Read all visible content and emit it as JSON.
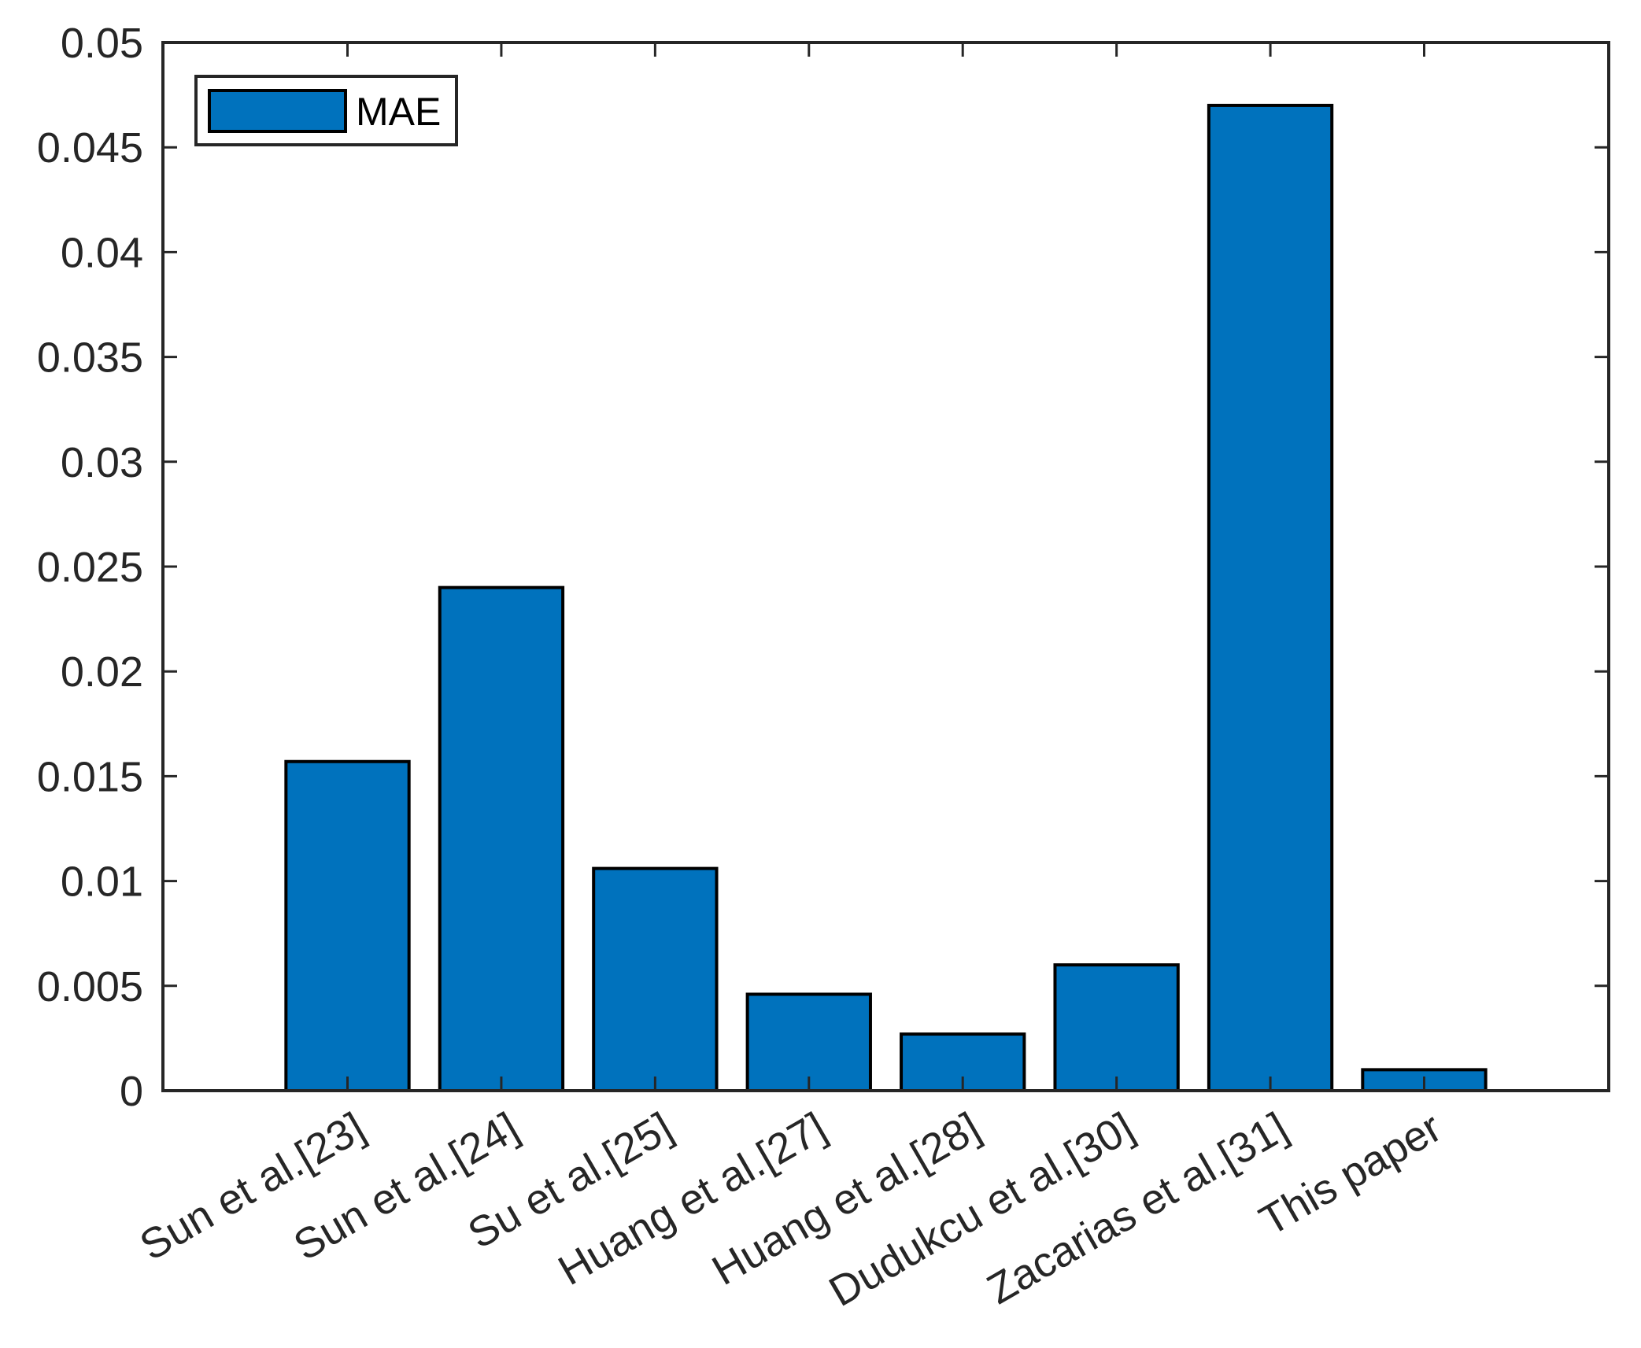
{
  "chart_data": {
    "type": "bar",
    "title": "",
    "xlabel": "",
    "ylabel": "",
    "categories": [
      "Sun et al.[23]",
      "Sun et al.[24]",
      "Su et al.[25]",
      "Huang et al.[27]",
      "Huang et al.[28]",
      "Dudukcu et al.[30]",
      "Zacarias et al.[31]",
      "This paper"
    ],
    "series": [
      {
        "name": "MAE",
        "color": "#0072BD",
        "values": [
          0.0157,
          0.024,
          0.0106,
          0.0046,
          0.0027,
          0.006,
          0.047,
          0.001
        ]
      }
    ],
    "ylim": [
      0,
      0.05
    ],
    "yticks": [
      0,
      0.005,
      0.01,
      0.015,
      0.02,
      0.025,
      0.03,
      0.035,
      0.04,
      0.045,
      0.05
    ],
    "ytick_labels": [
      "0",
      "0.005",
      "0.01",
      "0.015",
      "0.02",
      "0.025",
      "0.03",
      "0.035",
      "0.04",
      "0.045",
      "0.05"
    ],
    "xlim": [
      -0.2,
      9.2
    ],
    "bar_width": 0.8,
    "xtick_rotation_deg": 30,
    "grid": false,
    "box": true,
    "legend": {
      "position": "northwest",
      "entries": [
        "MAE"
      ]
    }
  },
  "style": {
    "axis_color": "#262626",
    "bar_edge_color": "#000000",
    "background": "#ffffff"
  }
}
